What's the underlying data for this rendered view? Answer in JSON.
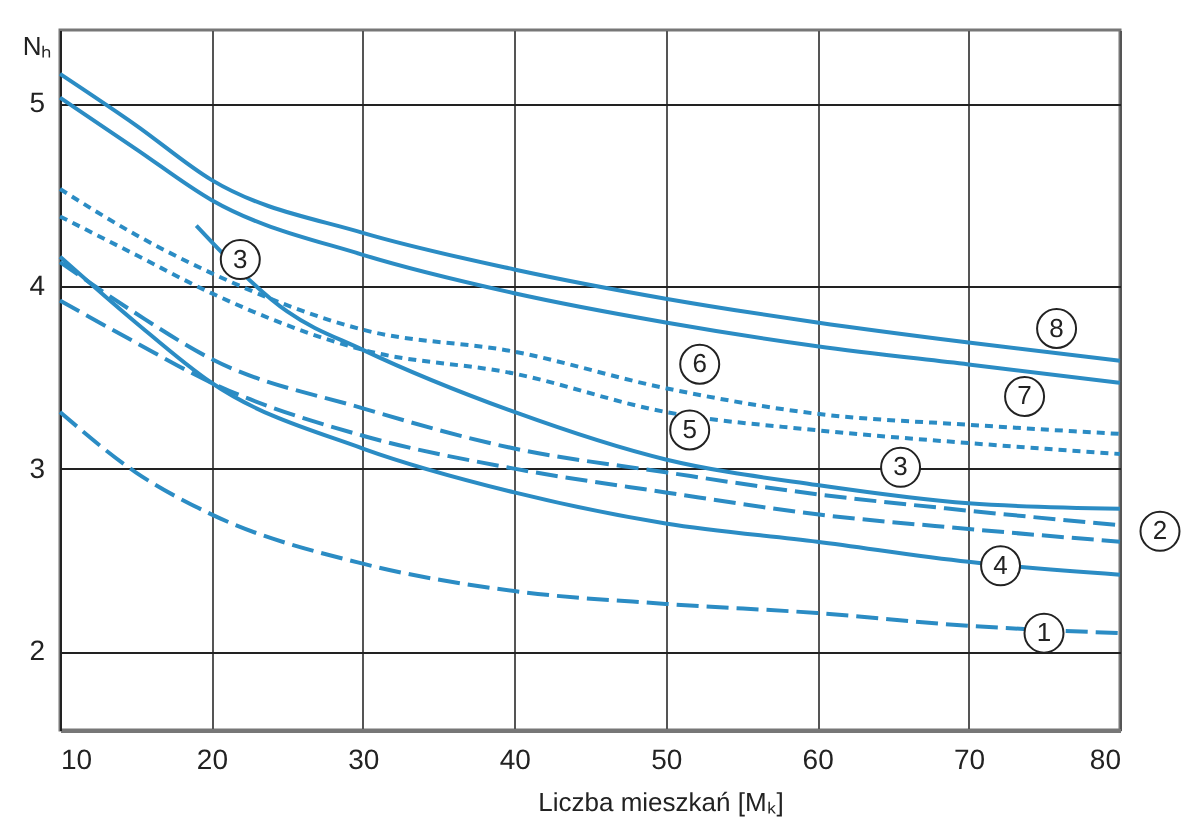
{
  "chart_data": {
    "type": "line",
    "xlabel": "Liczba mieszkań  [Mₖ]",
    "ylabel": "Nₕ",
    "x": [
      10,
      15,
      20,
      30,
      40,
      50,
      60,
      70,
      80
    ],
    "xlim": [
      10,
      80
    ],
    "xticks": [
      10,
      20,
      30,
      40,
      50,
      60,
      70,
      80
    ],
    "ylim": [
      1.57,
      5.4
    ],
    "yticks": [
      2,
      3,
      4,
      5
    ],
    "grid": true,
    "series": [
      {
        "name": "1",
        "color": "#2b8cc4",
        "line_style": "dashed",
        "values": [
          3.31,
          2.98,
          2.75,
          2.48,
          2.33,
          2.26,
          2.21,
          2.14,
          2.1
        ]
      },
      {
        "name": "2",
        "color": "#2b8cc4",
        "line_style": "dashed",
        "values": [
          4.13,
          3.85,
          3.6,
          3.33,
          3.11,
          2.98,
          2.86,
          2.77,
          2.69
        ]
      },
      {
        "color": "#2b8cc4",
        "line_style": "dashed",
        "values": [
          3.92,
          3.69,
          3.47,
          3.18,
          3.0,
          2.87,
          2.75,
          2.67,
          2.6
        ]
      },
      {
        "name": "3",
        "color": "#2b8cc4",
        "line_style": "solid",
        "x": [
          19,
          25,
          30,
          40,
          50,
          60,
          70,
          80
        ],
        "values": [
          4.33,
          3.86,
          3.65,
          3.31,
          3.05,
          2.91,
          2.81,
          2.78
        ]
      },
      {
        "name": "4",
        "color": "#2b8cc4",
        "line_style": "solid",
        "values": [
          4.16,
          3.8,
          3.47,
          3.11,
          2.87,
          2.7,
          2.6,
          2.49,
          2.42
        ]
      },
      {
        "name": "5",
        "color": "#2b8cc4",
        "line_style": "dotted",
        "values": [
          4.38,
          4.17,
          3.96,
          3.65,
          3.52,
          3.31,
          3.21,
          3.14,
          3.08
        ]
      },
      {
        "name": "6",
        "color": "#2b8cc4",
        "line_style": "dotted",
        "values": [
          4.53,
          4.28,
          4.07,
          3.76,
          3.64,
          3.44,
          3.3,
          3.24,
          3.19
        ]
      },
      {
        "name": "7",
        "color": "#2b8cc4",
        "line_style": "solid",
        "values": [
          5.03,
          4.75,
          4.47,
          4.17,
          3.96,
          3.8,
          3.67,
          3.57,
          3.47
        ]
      },
      {
        "name": "8",
        "color": "#2b8cc4",
        "line_style": "solid",
        "values": [
          5.16,
          4.88,
          4.58,
          4.29,
          4.09,
          3.93,
          3.8,
          3.69,
          3.59
        ]
      }
    ]
  }
}
